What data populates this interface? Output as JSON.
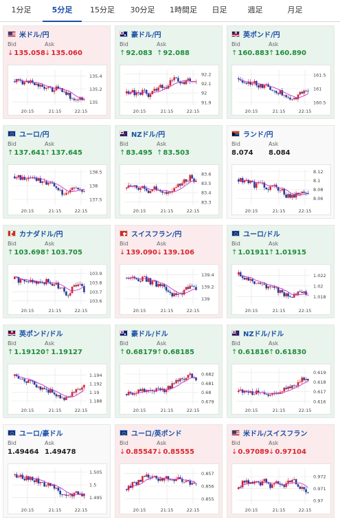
{
  "tabs": [
    {
      "label": "1分足"
    },
    {
      "label": "5分足"
    },
    {
      "label": "15分足"
    },
    {
      "label": "30分足"
    },
    {
      "label": "1時間足"
    },
    {
      "label": "日足"
    },
    {
      "label": "週足"
    },
    {
      "label": "月足"
    }
  ],
  "active_tab": 1,
  "labels": {
    "bid": "Bid",
    "ask": "Ask"
  },
  "colors": {
    "down": "#d9242f",
    "up": "#1f8c3b",
    "flat": "#222222",
    "candle_up": "#d9242f",
    "candle_down": "#1f3f9e",
    "ma": "#c42fc4",
    "grid": "#e3e3e3"
  },
  "x_ticks": [
    "20:15",
    "21:15",
    "22:15"
  ],
  "cards": [
    {
      "pair": "米ドル/円",
      "flag": "us-flag-icon",
      "trend": "down",
      "bid": "135.058",
      "ask": "135.060",
      "y_ticks": [
        "135.4",
        "135.2",
        "135"
      ],
      "ylim": [
        134.95,
        135.5
      ]
    },
    {
      "pair": "豪ドル/円",
      "flag": "au-flag-icon",
      "trend": "up",
      "bid": "92.083",
      "ask": "92.088",
      "y_ticks": [
        "92.2",
        "92.1",
        "92",
        "91.9"
      ],
      "ylim": [
        91.87,
        92.25
      ]
    },
    {
      "pair": "英ポンド/円",
      "flag": "gb-flag-icon",
      "trend": "up",
      "bid": "160.883",
      "ask": "160.890",
      "y_ticks": [
        "161.5",
        "161",
        "160.5"
      ],
      "ylim": [
        160.4,
        161.7
      ]
    },
    {
      "pair": "ユーロ/円",
      "flag": "eu-flag-icon",
      "trend": "up",
      "bid": "137.641",
      "ask": "137.645",
      "y_ticks": [
        "138.5",
        "138",
        "137.5"
      ],
      "ylim": [
        137.3,
        138.6
      ]
    },
    {
      "pair": "NZドル/円",
      "flag": "nz-flag-icon",
      "trend": "up",
      "bid": "83.495",
      "ask": "83.503",
      "y_ticks": [
        "83.6",
        "83.5",
        "83.4",
        "83.3"
      ],
      "ylim": [
        83.27,
        83.65
      ]
    },
    {
      "pair": "ランド/円",
      "flag": "za-flag-icon",
      "trend": "flat",
      "bid": "8.074",
      "ask": "8.084",
      "y_ticks": [
        "8.12",
        "8.1",
        "8.08",
        "8.06"
      ],
      "ylim": [
        8.045,
        8.125
      ]
    },
    {
      "pair": "カナダドル/円",
      "flag": "ca-flag-icon",
      "trend": "up",
      "bid": "103.698",
      "ask": "103.705",
      "y_ticks": [
        "103.9",
        "103.8",
        "103.7",
        "103.6"
      ],
      "ylim": [
        103.56,
        103.95
      ]
    },
    {
      "pair": "スイスフラン/円",
      "flag": "ch-flag-icon",
      "trend": "down",
      "bid": "139.090",
      "ask": "139.106",
      "y_ticks": [
        "139.4",
        "139.2",
        "139"
      ],
      "ylim": [
        138.9,
        139.5
      ]
    },
    {
      "pair": "ユーロ/ドル",
      "flag": "eu-flag-icon",
      "trend": "up",
      "bid": "1.01911",
      "ask": "1.01915",
      "y_ticks": [
        "1.022",
        "1.02",
        "1.018"
      ],
      "ylim": [
        1.0165,
        1.0232
      ]
    },
    {
      "pair": "英ポンド/ドル",
      "flag": "gb-flag-icon",
      "trend": "up",
      "bid": "1.19120",
      "ask": "1.19127",
      "y_ticks": [
        "1.194",
        "1.192",
        "1.19",
        "1.188"
      ],
      "ylim": [
        1.1872,
        1.1955
      ]
    },
    {
      "pair": "豪ドル/ドル",
      "flag": "au-flag-icon",
      "trend": "up",
      "bid": "0.68179",
      "ask": "0.68185",
      "y_ticks": [
        "0.682",
        "0.681",
        "0.68",
        "0.679"
      ],
      "ylim": [
        0.6787,
        0.6826
      ]
    },
    {
      "pair": "NZドル/ドル",
      "flag": "nz-flag-icon",
      "trend": "up",
      "bid": "0.61816",
      "ask": "0.61830",
      "y_ticks": [
        "0.619",
        "0.618",
        "0.617",
        "0.616"
      ],
      "ylim": [
        0.6157,
        0.6194
      ]
    },
    {
      "pair": "ユーロ/豪ドル",
      "flag": "eu-flag-icon",
      "trend": "flat",
      "bid": "1.49464",
      "ask": "1.49478",
      "y_ticks": [
        "1.505",
        "1.5",
        "1.495"
      ],
      "ylim": [
        1.4925,
        1.5065
      ]
    },
    {
      "pair": "ユーロ/英ポンド",
      "flag": "eu-flag-icon",
      "trend": "down",
      "bid": "0.85547",
      "ask": "0.85555",
      "y_ticks": [
        "0.857",
        "0.856",
        "0.855"
      ],
      "ylim": [
        0.8546,
        0.8574
      ]
    },
    {
      "pair": "米ドル/スイスフラン",
      "flag": "us-flag-icon",
      "trend": "down",
      "bid": "0.97089",
      "ask": "0.97104",
      "y_ticks": [
        "0.972",
        "0.971",
        "0.97"
      ],
      "ylim": [
        0.9697,
        0.9727
      ]
    }
  ]
}
